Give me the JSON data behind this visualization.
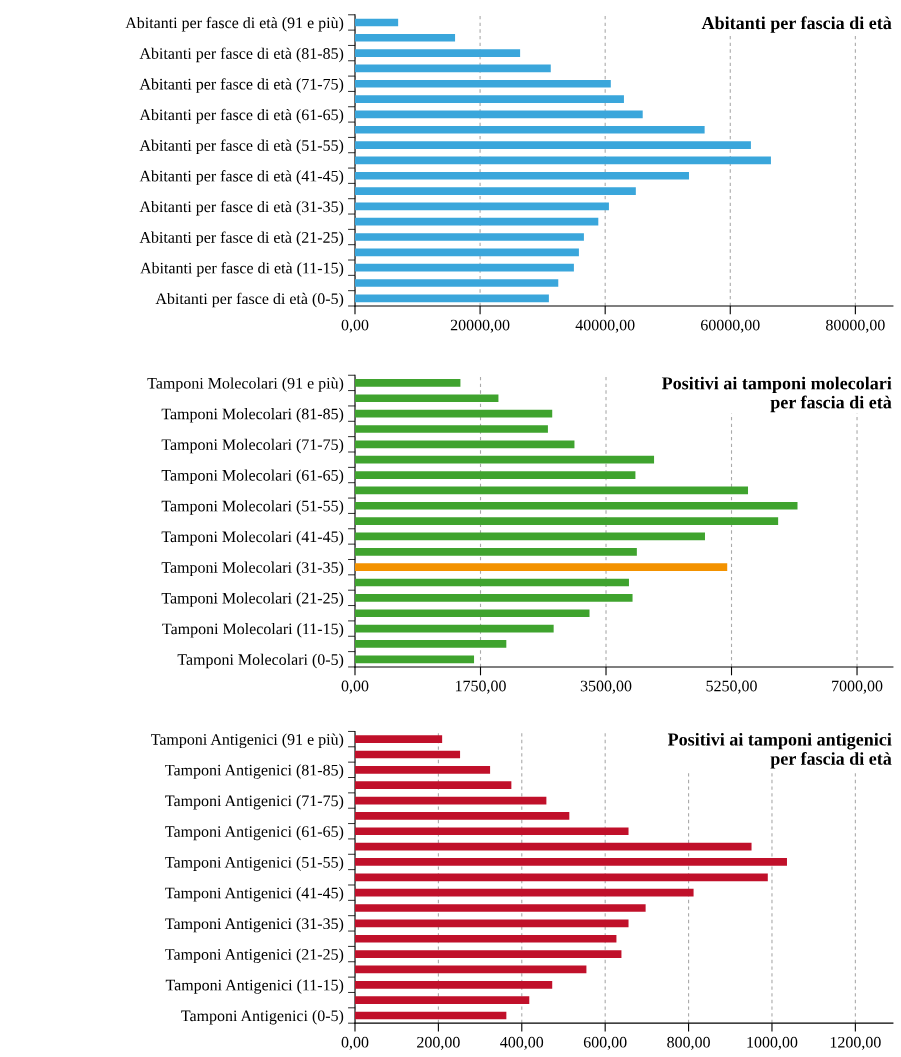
{
  "chart_data": [
    {
      "type": "bar",
      "orientation": "horizontal",
      "title": "Abitanti per fascia di età",
      "categories": [
        "Abitanti per fasce di età (91 e più)",
        null,
        "Abitanti per fasce di età (81-85)",
        null,
        "Abitanti per fasce di età (71-75)",
        null,
        "Abitanti per fasce di età (61-65)",
        null,
        "Abitanti per fasce di età (51-55)",
        null,
        "Abitanti per fasce di età (41-45)",
        null,
        "Abitanti per fasce di età (31-35)",
        null,
        "Abitanti per fasce di età (21-25)",
        null,
        "Abitanti per fasce di età (11-15)",
        null,
        "Abitanti per fasce di età (0-5)"
      ],
      "values": [
        6900,
        16000,
        26400,
        31300,
        40900,
        43000,
        46000,
        55900,
        63300,
        66500,
        53400,
        44900,
        40600,
        38900,
        36600,
        35800,
        35000,
        32500,
        31000
      ],
      "color": "#3aa6db",
      "xlim": [
        0,
        86000
      ],
      "xticks": [
        {
          "value": 0,
          "label": "0,00"
        },
        {
          "value": 20000,
          "label": "20000,00"
        },
        {
          "value": 40000,
          "label": "40000,00"
        },
        {
          "value": 60000,
          "label": "60000,00"
        },
        {
          "value": 80000,
          "label": "80000,00"
        }
      ],
      "grid": "x"
    },
    {
      "type": "bar",
      "orientation": "horizontal",
      "title": "Positivi ai tamponi molecolari\nper fascia di età",
      "categories": [
        "Tamponi Molecolari (91 e più)",
        null,
        "Tamponi Molecolari (81-85)",
        null,
        "Tamponi Molecolari (71-75)",
        null,
        "Tamponi Molecolari (61-65)",
        null,
        "Tamponi Molecolari (51-55)",
        null,
        "Tamponi Molecolari (41-45)",
        null,
        "Tamponi Molecolari (31-35)",
        null,
        "Tamponi Molecolari (21-25)",
        null,
        "Tamponi Molecolari (11-15)",
        null,
        "Tamponi Molecolari (0-5)"
      ],
      "values": [
        1470,
        2000,
        2750,
        2690,
        3060,
        4170,
        3910,
        5480,
        6170,
        5900,
        4880,
        3930,
        5190,
        3820,
        3870,
        3270,
        2770,
        2110,
        1660
      ],
      "colors": [
        "#3fa32e",
        "#3fa32e",
        "#3fa32e",
        "#3fa32e",
        "#3fa32e",
        "#3fa32e",
        "#3fa32e",
        "#3fa32e",
        "#3fa32e",
        "#3fa32e",
        "#3fa32e",
        "#3fa32e",
        "#f39200",
        "#3fa32e",
        "#3fa32e",
        "#3fa32e",
        "#3fa32e",
        "#3fa32e",
        "#3fa32e"
      ],
      "xlim": [
        0,
        7500
      ],
      "xticks": [
        {
          "value": 0,
          "label": "0,00"
        },
        {
          "value": 1750,
          "label": "1750,00"
        },
        {
          "value": 3500,
          "label": "3500,00"
        },
        {
          "value": 5250,
          "label": "5250,00"
        },
        {
          "value": 7000,
          "label": "7000,00"
        }
      ],
      "grid": "x"
    },
    {
      "type": "bar",
      "orientation": "horizontal",
      "title": "Positivi ai tamponi antigenici\nper fascia di età",
      "categories": [
        "Tamponi Antigenici (91 e più)",
        null,
        "Tamponi Antigenici (81-85)",
        null,
        "Tamponi Antigenici (71-75)",
        null,
        "Tamponi Antigenici (61-65)",
        null,
        "Tamponi Antigenici (51-55)",
        null,
        "Tamponi Antigenici (41-45)",
        null,
        "Tamponi Antigenici (31-35)",
        null,
        "Tamponi Antigenici (21-25)",
        null,
        "Tamponi Antigenici (11-15)",
        null,
        "Tamponi Antigenici (0-5)"
      ],
      "values": [
        209,
        252,
        324,
        375,
        459,
        514,
        656,
        951,
        1036,
        990,
        812,
        697,
        656,
        627,
        639,
        555,
        473,
        418,
        363
      ],
      "color": "#c0102a",
      "xlim": [
        0,
        1290
      ],
      "xticks": [
        {
          "value": 0,
          "label": "0,00"
        },
        {
          "value": 200,
          "label": "200,00"
        },
        {
          "value": 400,
          "label": "400,00"
        },
        {
          "value": 600,
          "label": "600,00"
        },
        {
          "value": 800,
          "label": "800,00"
        },
        {
          "value": 1000,
          "label": "1000,00"
        },
        {
          "value": 1200,
          "label": "1200,00"
        }
      ],
      "grid": "x"
    }
  ]
}
